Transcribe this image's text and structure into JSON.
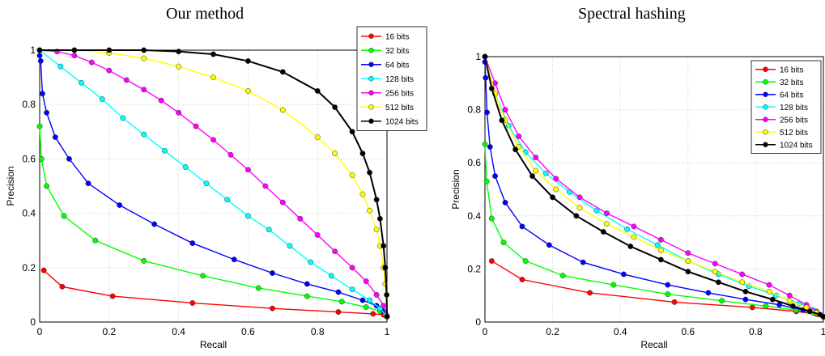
{
  "titles": {
    "left": "Our method",
    "right": "Spectral hashing"
  },
  "chart_data": [
    {
      "type": "line",
      "title": "Our method",
      "xlabel": "Recall",
      "ylabel": "Precision",
      "xlim": [
        0,
        1
      ],
      "ylim": [
        0,
        1
      ],
      "xticks": [
        "0",
        "0.2",
        "0.4",
        "0.6",
        "0.8",
        "1"
      ],
      "yticks": [
        "0",
        "0.2",
        "0.4",
        "0.6",
        "0.8",
        "1"
      ],
      "grid": true,
      "legend": "top-right",
      "series": [
        {
          "name": "16 bits",
          "color": "#ff0000",
          "x": [
            0.012,
            0.065,
            0.21,
            0.44,
            0.67,
            0.86,
            0.96,
            0.99,
            0.998,
            1.0
          ],
          "y": [
            0.19,
            0.13,
            0.095,
            0.07,
            0.05,
            0.037,
            0.03,
            0.027,
            0.025,
            0.02
          ]
        },
        {
          "name": "32 bits",
          "color": "#00ff00",
          "x": [
            0.0,
            0.005,
            0.02,
            0.07,
            0.16,
            0.3,
            0.47,
            0.63,
            0.77,
            0.87,
            0.94,
            0.98,
            0.995,
            1.0
          ],
          "y": [
            0.72,
            0.6,
            0.5,
            0.39,
            0.3,
            0.225,
            0.17,
            0.125,
            0.095,
            0.075,
            0.055,
            0.04,
            0.03,
            0.02
          ]
        },
        {
          "name": "64 bits",
          "color": "#0000ff",
          "x": [
            0.0,
            0.003,
            0.008,
            0.02,
            0.045,
            0.085,
            0.14,
            0.23,
            0.33,
            0.44,
            0.56,
            0.67,
            0.77,
            0.86,
            0.93,
            0.97,
            0.99,
            1.0
          ],
          "y": [
            0.98,
            0.96,
            0.84,
            0.77,
            0.68,
            0.6,
            0.51,
            0.43,
            0.36,
            0.29,
            0.23,
            0.18,
            0.14,
            0.11,
            0.08,
            0.06,
            0.04,
            0.02
          ]
        },
        {
          "name": "128 bits",
          "color": "#00ffff",
          "x": [
            0.0,
            0.06,
            0.12,
            0.18,
            0.24,
            0.3,
            0.36,
            0.42,
            0.48,
            0.54,
            0.6,
            0.66,
            0.72,
            0.78,
            0.84,
            0.9,
            0.95,
            0.98,
            1.0
          ],
          "y": [
            1.0,
            0.94,
            0.88,
            0.82,
            0.75,
            0.69,
            0.63,
            0.57,
            0.51,
            0.45,
            0.39,
            0.34,
            0.28,
            0.22,
            0.17,
            0.12,
            0.08,
            0.05,
            0.02
          ]
        },
        {
          "name": "256 bits",
          "color": "#ff00ff",
          "x": [
            0.0,
            0.05,
            0.1,
            0.15,
            0.2,
            0.25,
            0.3,
            0.35,
            0.4,
            0.45,
            0.5,
            0.55,
            0.6,
            0.65,
            0.7,
            0.75,
            0.8,
            0.85,
            0.9,
            0.94,
            0.97,
            0.99,
            1.0
          ],
          "y": [
            1.0,
            0.995,
            0.98,
            0.955,
            0.925,
            0.89,
            0.855,
            0.815,
            0.77,
            0.72,
            0.67,
            0.615,
            0.56,
            0.5,
            0.44,
            0.38,
            0.32,
            0.26,
            0.2,
            0.15,
            0.1,
            0.06,
            0.02
          ]
        },
        {
          "name": "512 bits",
          "color": "#ffff00",
          "x": [
            0.0,
            0.1,
            0.2,
            0.3,
            0.4,
            0.5,
            0.6,
            0.7,
            0.8,
            0.85,
            0.9,
            0.93,
            0.95,
            0.97,
            0.98,
            0.99,
            0.995,
            1.0
          ],
          "y": [
            1.0,
            1.0,
            0.99,
            0.97,
            0.94,
            0.9,
            0.85,
            0.78,
            0.68,
            0.62,
            0.54,
            0.47,
            0.41,
            0.34,
            0.28,
            0.2,
            0.14,
            0.02
          ]
        },
        {
          "name": "1024 bits",
          "color": "#000000",
          "x": [
            0.0,
            0.1,
            0.2,
            0.3,
            0.4,
            0.5,
            0.6,
            0.7,
            0.8,
            0.85,
            0.9,
            0.93,
            0.95,
            0.97,
            0.98,
            0.99,
            0.995,
            0.999,
            1.0
          ],
          "y": [
            1.0,
            1.0,
            1.0,
            1.0,
            0.995,
            0.985,
            0.96,
            0.92,
            0.85,
            0.79,
            0.7,
            0.62,
            0.55,
            0.45,
            0.38,
            0.28,
            0.2,
            0.1,
            0.02
          ]
        }
      ]
    },
    {
      "type": "line",
      "title": "Spectral hashing",
      "xlabel": "Recall",
      "ylabel": "Precision",
      "xlim": [
        0,
        1
      ],
      "ylim": [
        0,
        1
      ],
      "xticks": [
        "0",
        "0.2",
        "0.4",
        "0.6",
        "0.8",
        "1"
      ],
      "yticks": [
        "0",
        "0.2",
        "0.4",
        "0.6",
        "0.8",
        "1"
      ],
      "grid": true,
      "legend": "top-right",
      "series": [
        {
          "name": "16 bits",
          "color": "#ff0000",
          "x": [
            0.02,
            0.11,
            0.31,
            0.56,
            0.79,
            0.92,
            0.98,
            1.0
          ],
          "y": [
            0.23,
            0.16,
            0.11,
            0.075,
            0.055,
            0.04,
            0.03,
            0.02
          ]
        },
        {
          "name": "32 bits",
          "color": "#00ff00",
          "x": [
            0.0,
            0.005,
            0.02,
            0.055,
            0.12,
            0.23,
            0.38,
            0.54,
            0.7,
            0.83,
            0.92,
            0.97,
            1.0
          ],
          "y": [
            0.67,
            0.53,
            0.39,
            0.3,
            0.23,
            0.175,
            0.14,
            0.105,
            0.08,
            0.06,
            0.045,
            0.035,
            0.02
          ]
        },
        {
          "name": "64 bits",
          "color": "#0000ff",
          "x": [
            0.0,
            0.002,
            0.006,
            0.015,
            0.03,
            0.06,
            0.11,
            0.19,
            0.29,
            0.41,
            0.54,
            0.66,
            0.77,
            0.87,
            0.94,
            0.98,
            1.0
          ],
          "y": [
            0.98,
            0.92,
            0.79,
            0.66,
            0.55,
            0.45,
            0.36,
            0.29,
            0.225,
            0.18,
            0.14,
            0.11,
            0.085,
            0.065,
            0.045,
            0.035,
            0.02
          ]
        },
        {
          "name": "128 bits",
          "color": "#00ffff",
          "x": [
            0.0,
            0.03,
            0.07,
            0.12,
            0.18,
            0.25,
            0.33,
            0.42,
            0.51,
            0.6,
            0.69,
            0.78,
            0.86,
            0.93,
            0.97,
            1.0
          ],
          "y": [
            1.0,
            0.86,
            0.74,
            0.64,
            0.56,
            0.49,
            0.42,
            0.35,
            0.29,
            0.23,
            0.18,
            0.135,
            0.1,
            0.07,
            0.045,
            0.02
          ]
        },
        {
          "name": "256 bits",
          "color": "#ff00ff",
          "x": [
            0.0,
            0.03,
            0.06,
            0.1,
            0.15,
            0.21,
            0.28,
            0.36,
            0.44,
            0.52,
            0.6,
            0.68,
            0.76,
            0.84,
            0.9,
            0.95,
            0.98,
            1.0
          ],
          "y": [
            1.0,
            0.9,
            0.8,
            0.7,
            0.62,
            0.54,
            0.47,
            0.41,
            0.36,
            0.31,
            0.26,
            0.22,
            0.18,
            0.14,
            0.1,
            0.065,
            0.04,
            0.02
          ]
        },
        {
          "name": "512 bits",
          "color": "#ffff00",
          "x": [
            0.0,
            0.03,
            0.06,
            0.1,
            0.15,
            0.21,
            0.28,
            0.36,
            0.44,
            0.52,
            0.6,
            0.68,
            0.76,
            0.84,
            0.9,
            0.95,
            0.98,
            1.0
          ],
          "y": [
            1.0,
            0.86,
            0.76,
            0.66,
            0.57,
            0.5,
            0.43,
            0.37,
            0.32,
            0.27,
            0.23,
            0.19,
            0.15,
            0.115,
            0.08,
            0.055,
            0.035,
            0.02
          ]
        },
        {
          "name": "1024 bits",
          "color": "#000000",
          "x": [
            0.0,
            0.02,
            0.05,
            0.09,
            0.14,
            0.2,
            0.27,
            0.35,
            0.43,
            0.52,
            0.6,
            0.69,
            0.77,
            0.85,
            0.91,
            0.96,
            0.99,
            1.0
          ],
          "y": [
            1.0,
            0.88,
            0.76,
            0.65,
            0.55,
            0.47,
            0.4,
            0.34,
            0.285,
            0.235,
            0.19,
            0.15,
            0.115,
            0.085,
            0.06,
            0.04,
            0.028,
            0.02
          ]
        }
      ]
    }
  ]
}
